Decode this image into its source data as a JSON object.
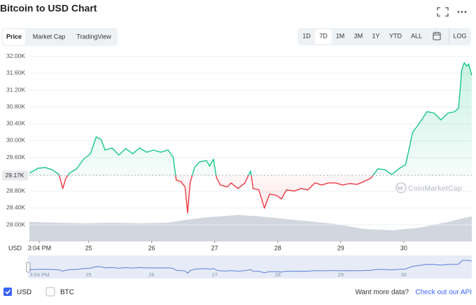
{
  "header": {
    "title": "Bitcoin to USD Chart"
  },
  "tabs": [
    "Price",
    "Market Cap",
    "TradingView"
  ],
  "ranges": [
    "1D",
    "7D",
    "1M",
    "3M",
    "1Y",
    "YTD",
    "ALL"
  ],
  "log_button": "LOG",
  "watermark": "CoinMarketCap",
  "footer": {
    "currencies": [
      "USD",
      "BTC"
    ],
    "prompt": "Want more data?",
    "link": "Check out our API"
  },
  "chart_data": {
    "type": "line",
    "y_label": "USD",
    "x": [
      24.06,
      24.2,
      24.31,
      24.42,
      24.53,
      24.59,
      24.64,
      24.7,
      24.81,
      24.92,
      25.03,
      25.12,
      25.2,
      25.26,
      25.37,
      25.48,
      25.59,
      25.7,
      25.81,
      25.92,
      26.03,
      26.14,
      26.26,
      26.34,
      26.39,
      26.46,
      26.53,
      26.57,
      26.61,
      26.68,
      26.76,
      26.87,
      26.92,
      26.98,
      27.03,
      27.09,
      27.2,
      27.26,
      27.37,
      27.48,
      27.57,
      27.61,
      27.7,
      27.79,
      27.87,
      27.98,
      28.06,
      28.14,
      28.26,
      28.37,
      28.48,
      28.59,
      28.7,
      28.81,
      28.92,
      29.03,
      29.14,
      29.26,
      29.37,
      29.48,
      29.59,
      29.7,
      29.81,
      29.92,
      30.03,
      30.14,
      30.26,
      30.37,
      30.48,
      30.59,
      30.7,
      30.81,
      30.87,
      30.92,
      30.96,
      31.0,
      31.03,
      31.08
    ],
    "values": [
      29228,
      29345,
      29360,
      29310,
      29195,
      28860,
      29110,
      29230,
      29330,
      29560,
      29690,
      30090,
      30025,
      29775,
      29825,
      29660,
      29810,
      29690,
      29825,
      29725,
      29775,
      29725,
      29775,
      29610,
      29060,
      29030,
      28900,
      28280,
      28995,
      29360,
      29495,
      29525,
      29395,
      29560,
      29110,
      28945,
      28900,
      28995,
      28860,
      28995,
      29280,
      28860,
      28830,
      28395,
      28730,
      28700,
      28615,
      28830,
      28800,
      28860,
      28830,
      28995,
      28945,
      28995,
      28995,
      28945,
      28980,
      28960,
      29030,
      29110,
      29330,
      29310,
      29195,
      29330,
      29430,
      30190,
      30440,
      30690,
      30655,
      30490,
      30655,
      30690,
      30770,
      31685,
      31850,
      31770,
      31820,
      31550
    ],
    "baseline": {
      "value": 29170,
      "label": "29.17K"
    },
    "above_color": "#16c784",
    "below_color": "#ea3943",
    "xlim": [
      24.06,
      31.08
    ],
    "xticks": [
      {
        "value": 24.22,
        "label": "3:04 PM"
      },
      25,
      26,
      27,
      28,
      29,
      30
    ],
    "ylim": [
      27620,
      32180
    ],
    "yticks": [
      {
        "value": 28000,
        "label": "28.00K"
      },
      {
        "value": 28400,
        "label": "28.40K"
      },
      {
        "value": 28800,
        "label": "28.80K"
      },
      {
        "value": 29200,
        "label": "29.20K"
      },
      {
        "value": 29600,
        "label": "29.60K"
      },
      {
        "value": 30000,
        "label": "30.00K"
      },
      {
        "value": 30400,
        "label": "30.40K"
      },
      {
        "value": 30800,
        "label": "30.80K"
      },
      {
        "value": 31200,
        "label": "31.20K"
      },
      {
        "value": 31600,
        "label": "31.60K"
      },
      {
        "value": 32000,
        "label": "32.00K"
      }
    ],
    "grid": true
  }
}
